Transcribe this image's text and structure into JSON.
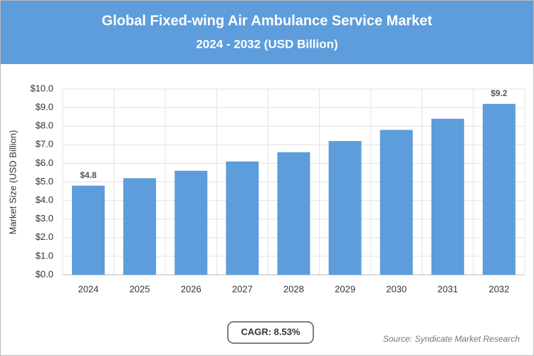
{
  "chart_data": {
    "type": "bar",
    "title": "Global Fixed-wing Air Ambulance Service Market",
    "subtitle": "2024 - 2032 (USD Billion)",
    "y_label": "Market Size (USD Billion)",
    "categories": [
      "2024",
      "2025",
      "2026",
      "2027",
      "2028",
      "2029",
      "2030",
      "2031",
      "2032"
    ],
    "values": [
      4.8,
      5.2,
      5.6,
      6.1,
      6.6,
      7.2,
      7.8,
      8.4,
      9.2
    ],
    "value_labels": [
      "$4.8",
      null,
      null,
      null,
      null,
      null,
      null,
      null,
      "$9.2"
    ],
    "color": "#5d9ddb",
    "ylim": [
      0,
      10
    ],
    "yticks": [
      {
        "value": 0,
        "label": "$0.0"
      },
      {
        "value": 1,
        "label": "$1.0"
      },
      {
        "value": 2,
        "label": "$2.0"
      },
      {
        "value": 3,
        "label": "$3.0"
      },
      {
        "value": 4,
        "label": "$4.0"
      },
      {
        "value": 5,
        "label": "$5.0"
      },
      {
        "value": 6,
        "label": "$6.0"
      },
      {
        "value": 7,
        "label": "$7.0"
      },
      {
        "value": 8,
        "label": "$8.0"
      },
      {
        "value": 9,
        "label": "$9.0"
      },
      {
        "value": 10,
        "label": "$10.0"
      }
    ],
    "grid": true,
    "annotation": "CAGR: 8.53%",
    "source": "Source: Syndicate Market Research"
  }
}
